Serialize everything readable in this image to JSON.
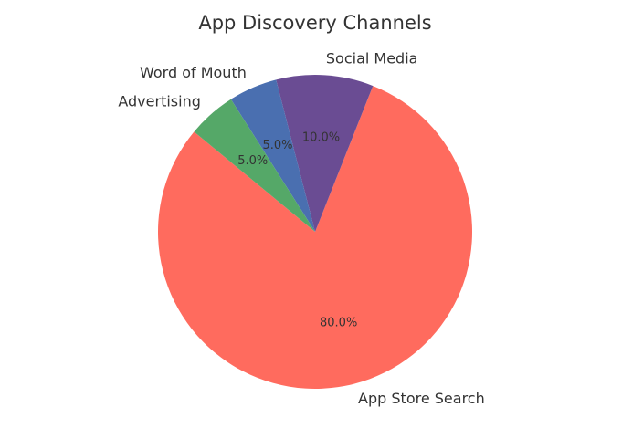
{
  "chart_data": {
    "type": "pie",
    "title": "App Discovery Channels",
    "categories": [
      "App Store Search",
      "Social Media",
      "Word of Mouth",
      "Advertising"
    ],
    "values": [
      80,
      10,
      5,
      5
    ],
    "value_labels": [
      "80.0%",
      "10.0%",
      "5.0%",
      "5.0%"
    ],
    "colors": [
      "#ff6b5e",
      "#6a4c93",
      "#4a6fb0",
      "#55a868"
    ]
  }
}
